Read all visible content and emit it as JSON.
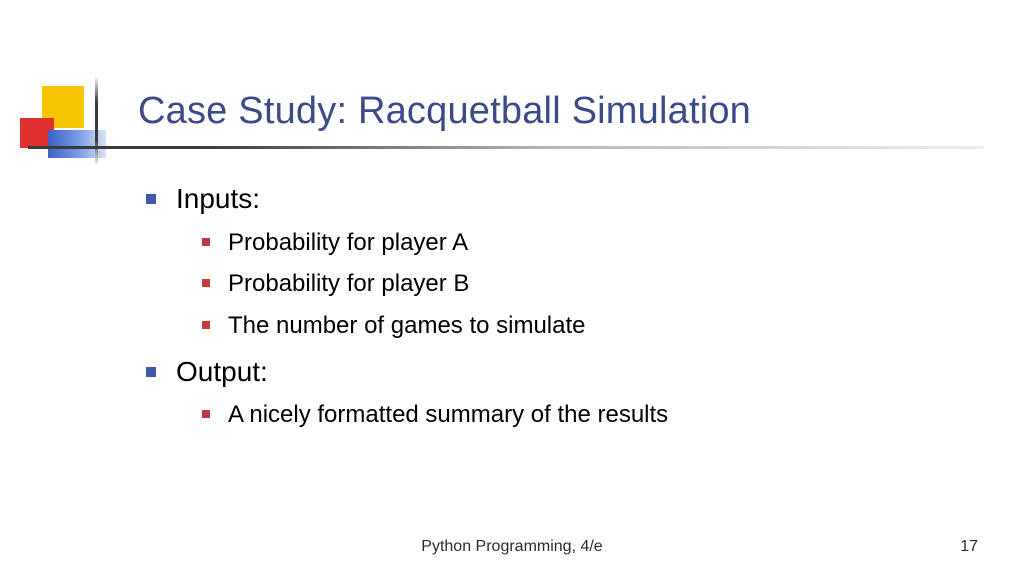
{
  "colors": {
    "title_color": "#3c4a8a",
    "body_text_color": "#000000",
    "footer_text_color": "#2a2a2a",
    "bullet_lvl1_color": "#3c5aa6",
    "bullet_lvl2_color": "#c43a3a",
    "deco_yellow": "#f6c500",
    "deco_red": "#e03030",
    "deco_blue": "#3b5fc4",
    "background": "#ffffff"
  },
  "typography": {
    "title_fontsize": 38,
    "lvl1_fontsize": 28,
    "lvl2_fontsize": 24,
    "footer_fontsize": 16,
    "font_family": "Verdana"
  },
  "slide": {
    "title": "Case Study: Racquetball Simulation",
    "bullets": [
      {
        "text": "Inputs:",
        "children": [
          "Probability for player A",
          "Probability for player B",
          "The number of games to simulate"
        ]
      },
      {
        "text": "Output:",
        "children": [
          "A nicely formatted summary of the results"
        ]
      }
    ]
  },
  "footer": {
    "text": "Python Programming, 4/e",
    "page_number": "17"
  }
}
